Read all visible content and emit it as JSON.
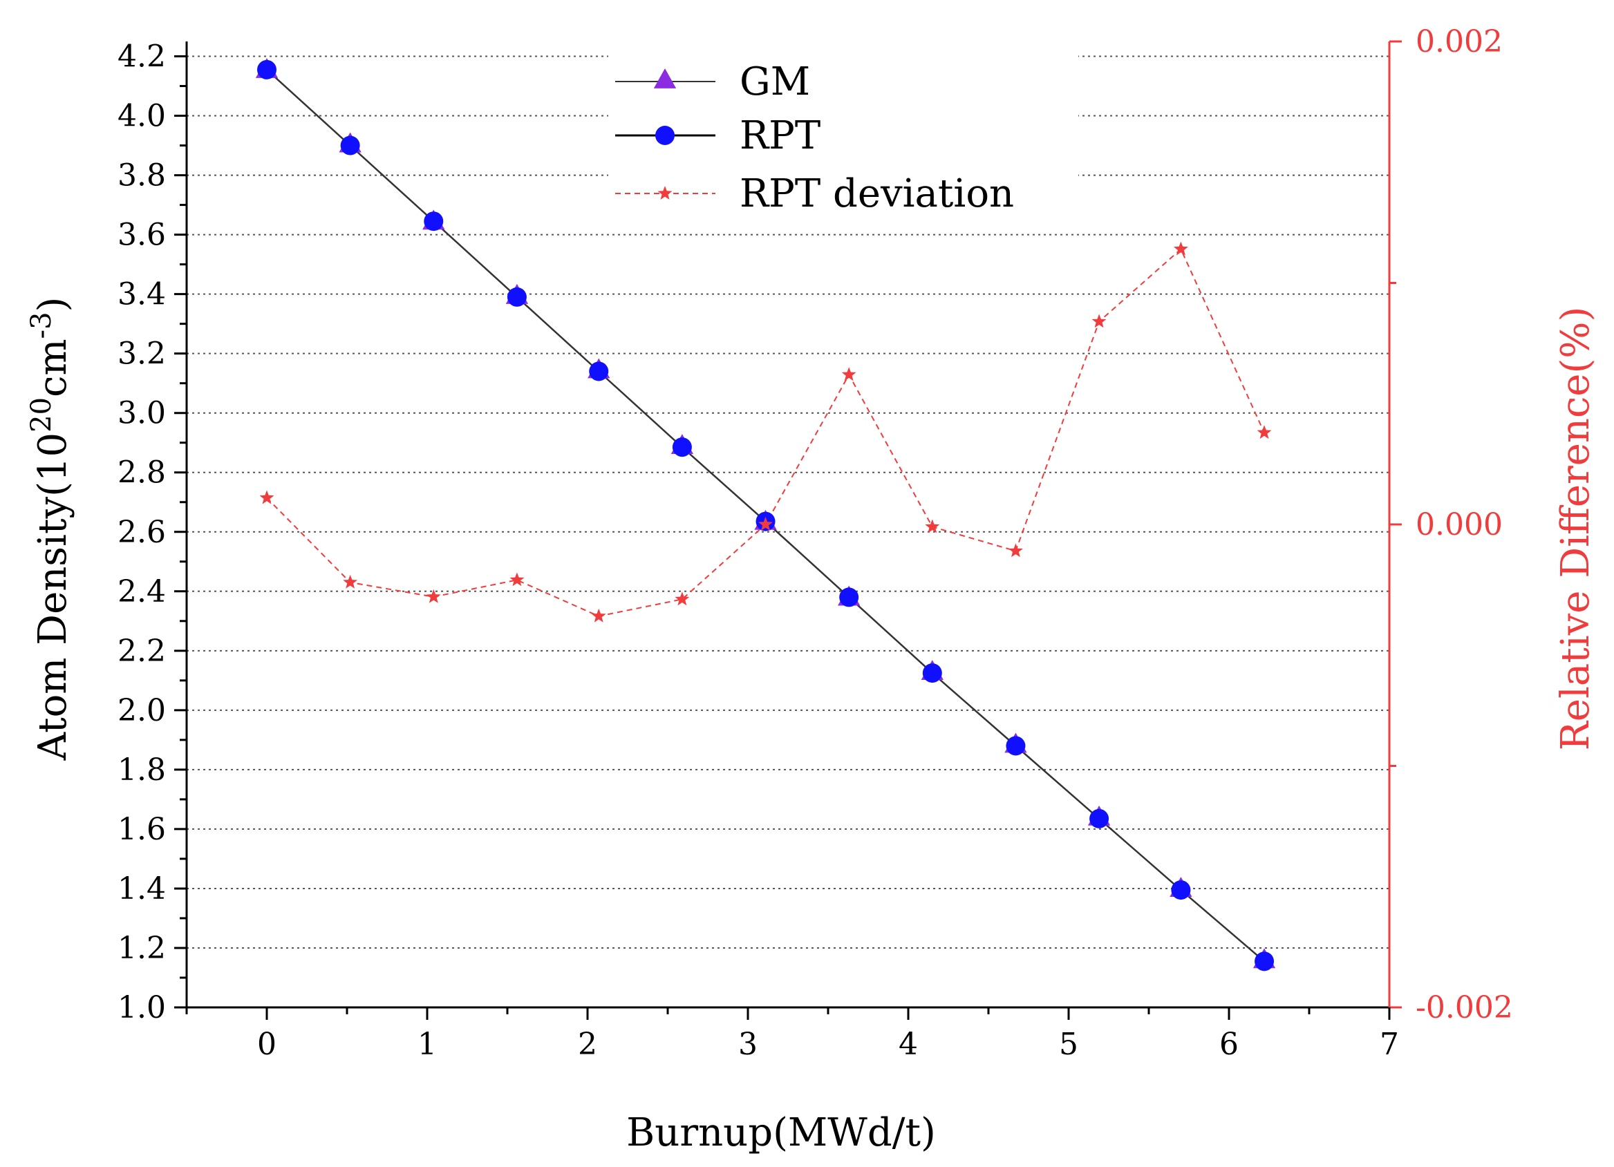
{
  "chart_data": {
    "type": "line",
    "title": "",
    "xlabel": "Burnup(MWd/t)",
    "ylabel": "Atom Density(10",
    "ylabel_exp1": "20",
    "ylabel_mid": "cm",
    "ylabel_exp2": "-3",
    "ylabel_end": ")",
    "y2label": "Relative Difference(%)",
    "xlim": [
      -0.5,
      7
    ],
    "ylim": [
      1.0,
      4.25
    ],
    "y2lim": [
      -0.002,
      0.002
    ],
    "x_ticks": [
      "0",
      "1",
      "2",
      "3",
      "4",
      "5",
      "6",
      "7"
    ],
    "x_tick_values": [
      0,
      1,
      2,
      3,
      4,
      5,
      6,
      7
    ],
    "y_ticks": [
      "1.0",
      "1.2",
      "1.4",
      "1.6",
      "1.8",
      "2.0",
      "2.2",
      "2.4",
      "2.6",
      "2.8",
      "3.0",
      "3.2",
      "3.4",
      "3.6",
      "3.8",
      "4.0",
      "4.2"
    ],
    "y_tick_values": [
      1.0,
      1.2,
      1.4,
      1.6,
      1.8,
      2.0,
      2.2,
      2.4,
      2.6,
      2.8,
      3.0,
      3.2,
      3.4,
      3.6,
      3.8,
      4.0,
      4.2
    ],
    "y2_ticks": [
      "-0.002",
      "0.000",
      "0.002"
    ],
    "y2_tick_values": [
      -0.002,
      0.0,
      0.002
    ],
    "x": [
      0,
      0.52,
      1.04,
      1.56,
      2.07,
      2.59,
      3.11,
      3.63,
      4.15,
      4.67,
      5.19,
      5.7,
      6.22
    ],
    "series": [
      {
        "name": "GM",
        "axis": "left",
        "marker": "triangle",
        "color": "#8b2be2",
        "values": [
          4.15,
          3.9,
          3.64,
          3.39,
          3.14,
          2.885,
          2.63,
          2.375,
          2.125,
          1.88,
          1.635,
          1.395,
          1.155
        ]
      },
      {
        "name": "RPT",
        "axis": "left",
        "marker": "circle",
        "color": "#1010ff",
        "values": [
          4.155,
          3.9,
          3.645,
          3.39,
          3.14,
          2.885,
          2.635,
          2.38,
          2.125,
          1.88,
          1.635,
          1.395,
          1.155
        ]
      },
      {
        "name": "RPT deviation",
        "axis": "right",
        "marker": "star",
        "color": "#f03c3c",
        "values": [
          0.00011,
          -0.00024,
          -0.0003,
          -0.00023,
          -0.00038,
          -0.00031,
          0.0,
          0.00062,
          -1e-05,
          -0.00011,
          0.00084,
          0.00114,
          0.00038
        ]
      }
    ],
    "grid": "horizontal dotted",
    "legend_position": "top-center"
  },
  "colors": {
    "axis": "#000000",
    "right_axis": "#f03c3c",
    "line": "#333333",
    "grid": "#555555"
  }
}
